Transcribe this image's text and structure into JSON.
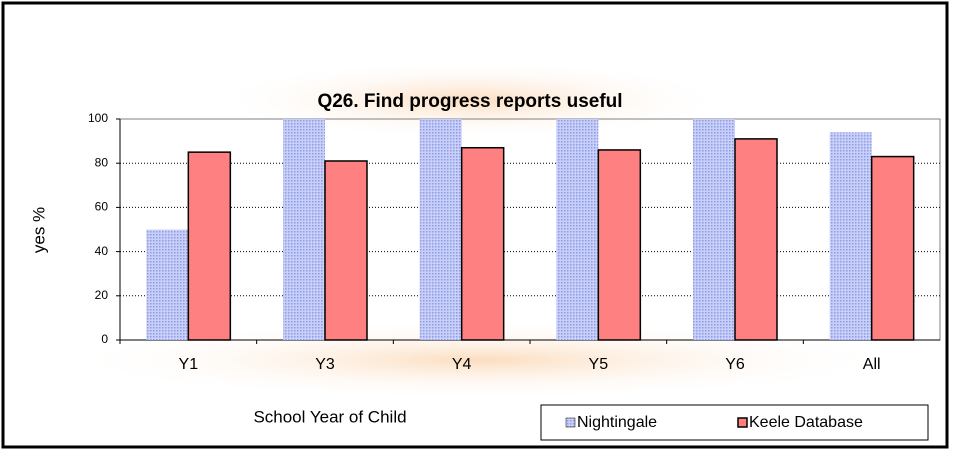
{
  "chart_data": {
    "type": "bar",
    "title": "Q26. Find progress reports useful",
    "x_label": "School Year of Child",
    "y_label": "yes %",
    "categories": [
      "Y1",
      "Y3",
      "Y4",
      "Y5",
      "Y6",
      "All"
    ],
    "series": [
      {
        "name": "Nightingale",
        "color": "#a8b4f0",
        "values": [
          50,
          100,
          100,
          100,
          100,
          94
        ]
      },
      {
        "name": "Keele Database",
        "color": "#ff8080",
        "values": [
          85,
          81,
          87,
          86,
          91,
          83
        ]
      }
    ],
    "ylim": [
      0,
      100
    ],
    "yticks": [
      0,
      20,
      40,
      60,
      80,
      100
    ],
    "grid": true
  }
}
